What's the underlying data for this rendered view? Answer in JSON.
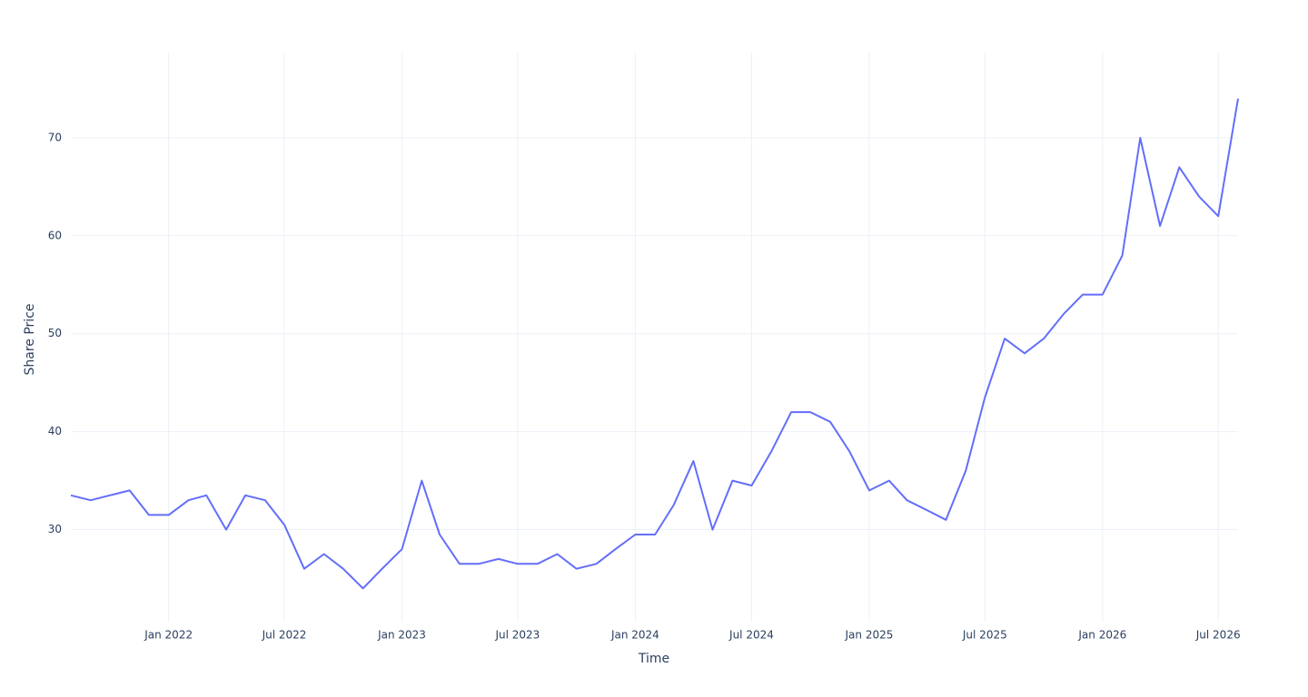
{
  "chart_data": {
    "type": "line",
    "x_label": "Time",
    "y_label": "Share Price",
    "x": [
      "2021-08",
      "2021-09",
      "2021-10",
      "2021-11",
      "2021-12",
      "2022-01",
      "2022-02",
      "2022-03",
      "2022-04",
      "2022-05",
      "2022-06",
      "2022-07",
      "2022-08",
      "2022-09",
      "2022-10",
      "2022-11",
      "2022-12",
      "2023-01",
      "2023-02",
      "2023-03",
      "2023-04",
      "2023-05",
      "2023-06",
      "2023-07",
      "2023-08",
      "2023-09",
      "2023-10",
      "2023-11",
      "2023-12",
      "2024-01",
      "2024-02",
      "2024-03",
      "2024-04",
      "2024-05",
      "2024-06",
      "2024-07",
      "2024-08",
      "2024-09",
      "2024-10",
      "2024-11",
      "2024-12",
      "2025-01",
      "2025-02",
      "2025-03",
      "2025-04",
      "2025-05",
      "2025-06",
      "2025-07",
      "2025-08",
      "2025-09",
      "2025-10",
      "2025-11",
      "2025-12",
      "2026-01",
      "2026-02",
      "2026-03",
      "2026-04",
      "2026-05",
      "2026-06",
      "2026-07",
      "2026-08"
    ],
    "series": [
      {
        "color": "#636efa",
        "values": [
          33.5,
          33,
          33.5,
          34,
          31.5,
          31.5,
          33,
          33.5,
          30,
          33.5,
          33,
          30.5,
          26,
          27.5,
          26,
          24,
          26,
          28,
          35,
          29.5,
          26.5,
          26.5,
          27,
          26.5,
          26.5,
          27.5,
          26,
          26.5,
          28,
          29.5,
          29.5,
          32.5,
          37,
          30,
          35,
          34.5,
          38,
          42,
          42,
          41,
          38,
          34,
          35,
          33,
          32,
          31,
          36,
          43.5,
          49.5,
          48,
          49.5,
          52,
          54,
          54,
          58,
          70,
          61,
          67,
          64,
          62,
          74
        ]
      }
    ],
    "xlim": [
      "2021-08",
      "2026-08"
    ],
    "xticks": [
      {
        "value": "2022-01",
        "label": "Jan 2022"
      },
      {
        "value": "2022-07",
        "label": "Jul 2022"
      },
      {
        "value": "2023-01",
        "label": "Jan 2023"
      },
      {
        "value": "2023-07",
        "label": "Jul 2023"
      },
      {
        "value": "2024-01",
        "label": "Jan 2024"
      },
      {
        "value": "2024-07",
        "label": "Jul 2024"
      },
      {
        "value": "2025-01",
        "label": "Jan 2025"
      },
      {
        "value": "2025-07",
        "label": "Jul 2025"
      },
      {
        "value": "2026-01",
        "label": "Jan 2026"
      },
      {
        "value": "2026-07",
        "label": "Jul 2026"
      }
    ],
    "ylim": [
      20.6,
      78.7
    ],
    "yticks": [
      30,
      40,
      50,
      60,
      70
    ],
    "grid": true
  }
}
